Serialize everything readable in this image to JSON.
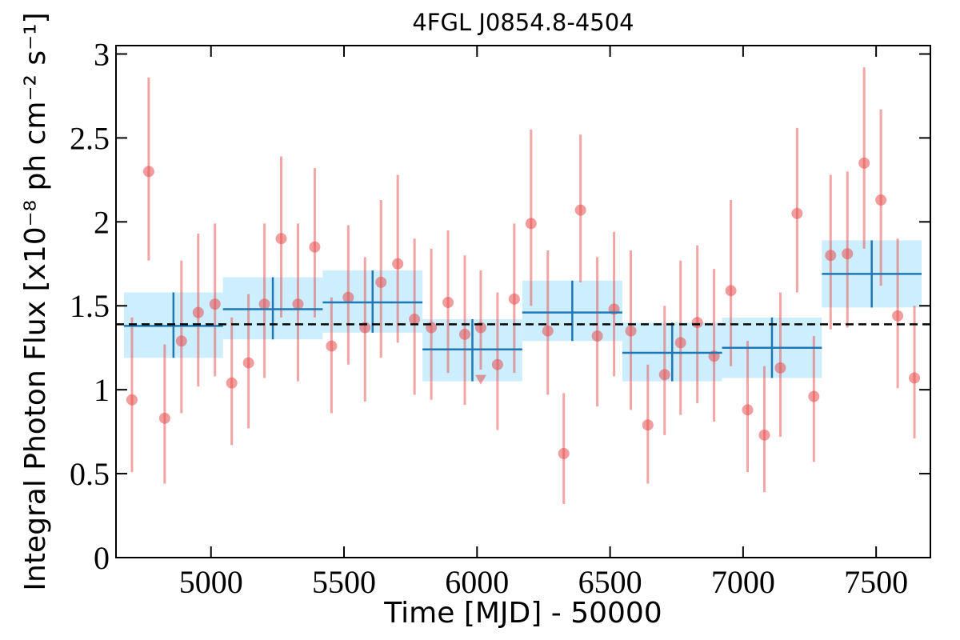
{
  "chart_data": {
    "type": "lightcurve",
    "title": "4FGL J0854.8-4504",
    "x_label": "Time [MJD] - 50000",
    "y_label": "Integral Photon Flux [x10⁻⁸ ph cm⁻² s⁻¹]",
    "xlim": [
      4643,
      7704
    ],
    "ylim": [
      0,
      3.05
    ],
    "xticks": [
      5000,
      5500,
      6000,
      6500,
      7000,
      7500
    ],
    "yticks": [
      0,
      0.5,
      1,
      1.5,
      2,
      2.5,
      3
    ],
    "points": {
      "color": "#e74c4c",
      "x": [
        4703,
        4766,
        4826,
        4889,
        4952,
        5015,
        5078,
        5141,
        5201,
        5264,
        5327,
        5390,
        5453,
        5516,
        5579,
        5639,
        5702,
        5765,
        5828,
        5891,
        5954,
        6014,
        6077,
        6140,
        6203,
        6266,
        6326,
        6389,
        6452,
        6515,
        6578,
        6642,
        6705,
        6765,
        6828,
        6891,
        6954,
        7017,
        7080,
        7140,
        7203,
        7266,
        7329,
        7392,
        7455,
        7518,
        7581,
        7644
      ],
      "values": [
        0.94,
        2.3,
        0.83,
        1.29,
        1.46,
        1.51,
        1.04,
        1.16,
        1.51,
        1.9,
        1.51,
        1.85,
        1.26,
        1.55,
        1.37,
        1.64,
        1.75,
        1.42,
        1.37,
        1.52,
        1.33,
        1.37,
        1.15,
        1.54,
        1.99,
        1.35,
        0.62,
        2.07,
        1.32,
        1.48,
        1.35,
        0.79,
        1.09,
        1.28,
        1.4,
        1.2,
        1.59,
        0.88,
        0.73,
        1.13,
        2.05,
        0.96,
        1.8,
        1.81,
        2.35,
        2.13,
        1.44,
        1.07
      ],
      "upper": [
        1.43,
        2.86,
        1.27,
        1.77,
        1.93,
        1.99,
        1.43,
        1.57,
        1.99,
        2.39,
        1.99,
        2.32,
        1.55,
        1.98,
        1.79,
        2.13,
        2.28,
        1.9,
        1.84,
        1.95,
        1.8,
        1.71,
        1.58,
        1.99,
        2.55,
        1.83,
        0.98,
        2.52,
        1.79,
        1.94,
        1.83,
        1.15,
        1.5,
        1.77,
        1.86,
        1.72,
        2.13,
        1.29,
        1.14,
        1.58,
        2.56,
        1.32,
        2.28,
        2.3,
        2.92,
        2.67,
        1.9,
        1.5
      ],
      "lower": [
        0.51,
        1.77,
        0.44,
        0.86,
        1.02,
        1.08,
        0.67,
        0.77,
        1.07,
        1.43,
        1.05,
        1.43,
        0.86,
        1.15,
        0.93,
        1.19,
        1.28,
        0.97,
        0.94,
        1.1,
        0.91,
        1.12,
        0.76,
        1.1,
        1.5,
        0.97,
        0.32,
        1.64,
        0.9,
        1.08,
        0.88,
        0.44,
        0.73,
        0.85,
        0.92,
        0.81,
        1.14,
        0.51,
        0.39,
        0.72,
        1.58,
        0.57,
        1.36,
        1.37,
        1.84,
        1.62,
        1.01,
        0.71
      ]
    },
    "upper_limits": {
      "color": "#e74c4c",
      "x": [
        6014
      ],
      "values": [
        1.06
      ]
    },
    "bins": {
      "color": "#1f77b4",
      "fill": "#cdeefc",
      "edges": [
        4673,
        5045,
        5420,
        5795,
        6170,
        6546,
        6921,
        7296,
        7671
      ],
      "values": [
        1.38,
        1.48,
        1.52,
        1.24,
        1.46,
        1.22,
        1.25,
        1.69
      ],
      "upper": [
        1.58,
        1.67,
        1.71,
        1.42,
        1.65,
        1.4,
        1.43,
        1.89
      ],
      "lower": [
        1.19,
        1.3,
        1.34,
        1.05,
        1.29,
        1.05,
        1.07,
        1.49
      ]
    },
    "mean": 1.39
  }
}
